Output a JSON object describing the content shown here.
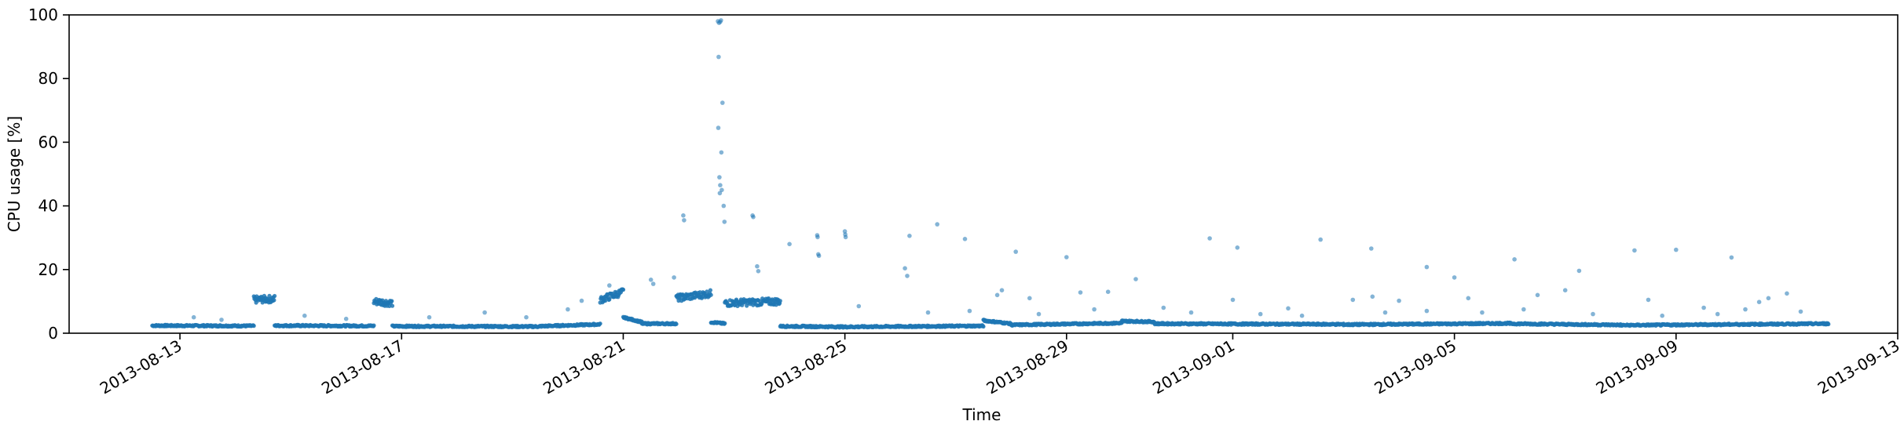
{
  "chart_data": {
    "type": "scatter",
    "title": "",
    "xlabel": "Time",
    "ylabel": "CPU usage [%]",
    "xlim": [
      "2013-08-11",
      "2013-09-13"
    ],
    "ylim": [
      0,
      100
    ],
    "x_ticks": [
      "2013-08-13",
      "2013-08-17",
      "2013-08-21",
      "2013-08-25",
      "2013-08-29",
      "2013-09-01",
      "2013-09-05",
      "2013-09-09",
      "2013-09-13"
    ],
    "y_ticks": [
      0,
      20,
      40,
      60,
      80,
      100
    ],
    "grid": false,
    "legend": "none",
    "colors": {
      "points": "#1f77b4",
      "axes": "#000000",
      "background": "#ffffff"
    },
    "baseline_segments": [
      {
        "x0": "2013-08-12 12:00",
        "x1": "2013-08-14 08:00",
        "y0": 2.4,
        "y1": 2.3
      },
      {
        "x0": "2013-08-14 08:00",
        "x1": "2013-08-14 17:00",
        "y0": 10.5,
        "y1": 10.8
      },
      {
        "x0": "2013-08-14 17:00",
        "x1": "2013-08-16 12:00",
        "y0": 2.4,
        "y1": 2.3
      },
      {
        "x0": "2013-08-16 12:00",
        "x1": "2013-08-16 20:00",
        "y0": 10.0,
        "y1": 9.5
      },
      {
        "x0": "2013-08-16 20:00",
        "x1": "2013-08-19 12:00",
        "y0": 2.2,
        "y1": 2.1
      },
      {
        "x0": "2013-08-19 12:00",
        "x1": "2013-08-20 14:00",
        "y0": 2.2,
        "y1": 2.8
      },
      {
        "x0": "2013-08-20 14:00",
        "x1": "2013-08-21 00:00",
        "y0": 10.5,
        "y1": 13.0
      },
      {
        "x0": "2013-08-21 00:00",
        "x1": "2013-08-21 08:00",
        "y0": 5.0,
        "y1": 3.5
      },
      {
        "x0": "2013-08-21 08:00",
        "x1": "2013-08-21 23:00",
        "y0": 3.0,
        "y1": 3.0
      },
      {
        "x0": "2013-08-21 23:00",
        "x1": "2013-08-22 14:00",
        "y0": 11.0,
        "y1": 12.5
      },
      {
        "x0": "2013-08-22 14:00",
        "x1": "2013-08-22 20:00",
        "y0": 3.5,
        "y1": 3.0
      },
      {
        "x0": "2013-08-22 20:00",
        "x1": "2013-08-23 20:00",
        "y0": 9.5,
        "y1": 10.0
      },
      {
        "x0": "2013-08-23 20:00",
        "x1": "2013-08-25 00:00",
        "y0": 2.2,
        "y1": 2.0
      },
      {
        "x0": "2013-08-25 00:00",
        "x1": "2013-08-27 12:00",
        "y0": 2.0,
        "y1": 2.3
      },
      {
        "x0": "2013-08-27 12:00",
        "x1": "2013-08-28 00:00",
        "y0": 4.0,
        "y1": 3.0
      },
      {
        "x0": "2013-08-28 00:00",
        "x1": "2013-08-30 00:00",
        "y0": 2.6,
        "y1": 3.2
      },
      {
        "x0": "2013-08-30 00:00",
        "x1": "2013-08-30 14:00",
        "y0": 3.8,
        "y1": 3.6
      },
      {
        "x0": "2013-08-30 14:00",
        "x1": "2013-09-03 00:00",
        "y0": 3.0,
        "y1": 2.8
      },
      {
        "x0": "2013-09-03 00:00",
        "x1": "2013-09-06 00:00",
        "y0": 2.7,
        "y1": 3.1
      },
      {
        "x0": "2013-09-06 00:00",
        "x1": "2013-09-08 00:00",
        "y0": 3.0,
        "y1": 2.6
      },
      {
        "x0": "2013-09-08 00:00",
        "x1": "2013-09-11 18:00",
        "y0": 2.5,
        "y1": 3.0
      }
    ],
    "outliers": [
      [
        "2013-08-22 17:00",
        98.0
      ],
      [
        "2013-08-22 17:30",
        97.5
      ],
      [
        "2013-08-22 18:00",
        97.8
      ],
      [
        "2013-08-22 18:20",
        98.3
      ],
      [
        "2013-08-22 17:20",
        86.8
      ],
      [
        "2013-08-22 19:00",
        72.4
      ],
      [
        "2013-08-22 17:10",
        64.5
      ],
      [
        "2013-08-22 18:30",
        56.8
      ],
      [
        "2013-08-22 17:40",
        49.0
      ],
      [
        "2013-08-22 18:00",
        46.5
      ],
      [
        "2013-08-22 18:40",
        45.0
      ],
      [
        "2013-08-22 17:50",
        44.0
      ],
      [
        "2013-08-22 02:00",
        37.0
      ],
      [
        "2013-08-22 02:20",
        35.5
      ],
      [
        "2013-08-23 08:00",
        37.0
      ],
      [
        "2013-08-23 08:20",
        36.5
      ],
      [
        "2013-08-22 19:30",
        40.0
      ],
      [
        "2013-08-22 19:50",
        35.0
      ],
      [
        "2013-08-24 12:00",
        30.8
      ],
      [
        "2013-08-24 12:10",
        30.2
      ],
      [
        "2013-08-24 12:30",
        24.8
      ],
      [
        "2013-08-24 12:45",
        24.3
      ],
      [
        "2013-08-25 00:00",
        32.0
      ],
      [
        "2013-08-25 00:10",
        31.0
      ],
      [
        "2013-08-25 00:20",
        30.2
      ],
      [
        "2013-08-26 04:00",
        30.6
      ],
      [
        "2013-08-26 16:00",
        34.2
      ],
      [
        "2013-08-27 04:00",
        29.6
      ],
      [
        "2013-08-28 02:00",
        25.6
      ],
      [
        "2013-08-29 00:00",
        23.9
      ],
      [
        "2013-08-31 14:00",
        29.8
      ],
      [
        "2013-09-01 02:00",
        26.9
      ],
      [
        "2013-09-02 14:00",
        29.4
      ],
      [
        "2013-09-03 12:00",
        26.6
      ],
      [
        "2013-09-04 12:00",
        20.8
      ],
      [
        "2013-09-06 02:00",
        23.2
      ],
      [
        "2013-09-07 06:00",
        19.6
      ],
      [
        "2013-09-08 06:00",
        26.0
      ],
      [
        "2013-09-09 00:00",
        26.2
      ],
      [
        "2013-09-10 00:00",
        23.8
      ],
      [
        "2013-08-20 18:00",
        15.0
      ],
      [
        "2013-08-21 12:00",
        16.8
      ],
      [
        "2013-08-21 13:00",
        15.5
      ],
      [
        "2013-08-21 22:00",
        17.5
      ],
      [
        "2013-08-23 10:00",
        21.0
      ],
      [
        "2013-08-23 10:30",
        19.5
      ],
      [
        "2013-08-24 00:00",
        28.0
      ],
      [
        "2013-08-26 02:00",
        20.4
      ],
      [
        "2013-08-26 03:00",
        18.0
      ],
      [
        "2013-08-27 18:00",
        12.0
      ],
      [
        "2013-08-27 20:00",
        13.5
      ],
      [
        "2013-08-28 08:00",
        11.0
      ],
      [
        "2013-08-29 06:00",
        12.8
      ],
      [
        "2013-08-29 18:00",
        13.0
      ],
      [
        "2013-08-30 06:00",
        17.0
      ],
      [
        "2013-09-01 00:00",
        10.5
      ],
      [
        "2013-09-02 00:00",
        7.8
      ],
      [
        "2013-09-03 04:00",
        10.5
      ],
      [
        "2013-09-03 12:30",
        11.5
      ],
      [
        "2013-09-04 00:00",
        10.2
      ],
      [
        "2013-09-05 00:00",
        17.5
      ],
      [
        "2013-09-05 06:00",
        11.0
      ],
      [
        "2013-09-06 12:00",
        12.0
      ],
      [
        "2013-09-07 00:00",
        13.5
      ],
      [
        "2013-09-08 12:00",
        10.5
      ],
      [
        "2013-09-09 12:00",
        8.0
      ],
      [
        "2013-09-10 12:00",
        9.8
      ],
      [
        "2013-09-11 00:00",
        12.5
      ],
      [
        "2013-09-10 16:00",
        11.0
      ],
      [
        "2013-08-13 06:00",
        5.0
      ],
      [
        "2013-08-13 18:00",
        4.2
      ],
      [
        "2013-08-15 06:00",
        5.5
      ],
      [
        "2013-08-16 00:00",
        4.5
      ],
      [
        "2013-08-17 12:00",
        5.0
      ],
      [
        "2013-08-18 12:00",
        6.5
      ],
      [
        "2013-08-19 06:00",
        5.0
      ],
      [
        "2013-08-20 00:00",
        7.5
      ],
      [
        "2013-08-20 06:00",
        10.2
      ],
      [
        "2013-08-25 06:00",
        8.5
      ],
      [
        "2013-08-26 12:00",
        6.5
      ],
      [
        "2013-08-27 06:00",
        7.0
      ],
      [
        "2013-08-28 12:00",
        6.0
      ],
      [
        "2013-08-29 12:00",
        7.5
      ],
      [
        "2013-08-30 18:00",
        8.0
      ],
      [
        "2013-08-31 06:00",
        6.5
      ],
      [
        "2013-09-01 12:00",
        6.0
      ],
      [
        "2013-09-02 06:00",
        5.5
      ],
      [
        "2013-09-03 18:00",
        6.5
      ],
      [
        "2013-09-04 12:00",
        7.0
      ],
      [
        "2013-09-05 12:00",
        6.5
      ],
      [
        "2013-09-06 06:00",
        7.5
      ],
      [
        "2013-09-07 12:00",
        6.0
      ],
      [
        "2013-09-08 18:00",
        5.5
      ],
      [
        "2013-09-09 18:00",
        6.0
      ],
      [
        "2013-09-10 06:00",
        7.5
      ],
      [
        "2013-09-11 06:00",
        6.8
      ]
    ]
  }
}
